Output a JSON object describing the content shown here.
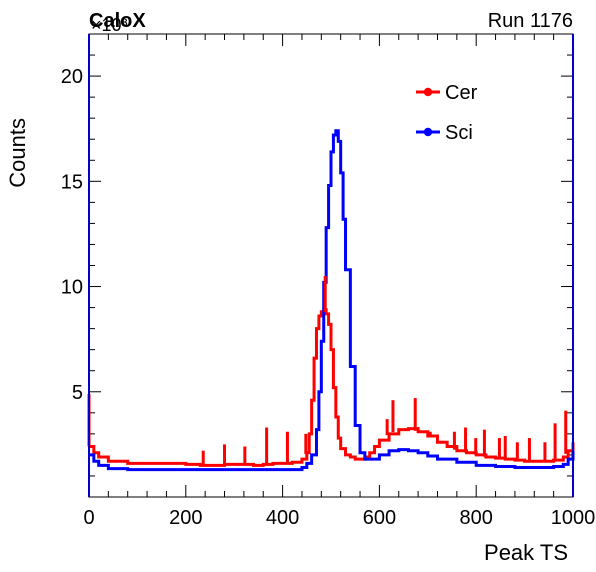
{
  "header": {
    "left_label": "CaloX",
    "right_label": "Run 1176"
  },
  "chart_data": {
    "type": "line",
    "title": "",
    "xlabel": "Peak TS",
    "ylabel": "Counts",
    "xlim": [
      0,
      1000
    ],
    "ylim": [
      0,
      22
    ],
    "y_scale_label": "×10³",
    "y_units_multiplier": 1000,
    "xticks": [
      0,
      200,
      400,
      600,
      800,
      1000
    ],
    "yticks": [
      5,
      10,
      15,
      20
    ],
    "legend_position": "top-right",
    "grid": false,
    "series": [
      {
        "name": "Cer",
        "color": "#ff0000",
        "style": "step-line",
        "x": [
          0,
          10,
          20,
          40,
          80,
          120,
          160,
          200,
          230,
          260,
          280,
          300,
          320,
          340,
          360,
          380,
          400,
          420,
          440,
          450,
          455,
          460,
          465,
          470,
          475,
          480,
          485,
          490,
          495,
          500,
          505,
          510,
          515,
          520,
          530,
          540,
          550,
          560,
          570,
          580,
          590,
          600,
          620,
          640,
          660,
          680,
          700,
          720,
          740,
          760,
          780,
          800,
          820,
          840,
          860,
          880,
          900,
          920,
          940,
          960,
          980,
          990,
          1000
        ],
        "values": [
          2.4,
          2.1,
          1.9,
          1.7,
          1.6,
          1.6,
          1.6,
          1.55,
          1.5,
          1.5,
          1.55,
          1.55,
          1.55,
          1.5,
          1.55,
          1.6,
          1.6,
          1.65,
          1.8,
          2.1,
          3.0,
          4.6,
          6.6,
          8.0,
          8.6,
          8.8,
          8.9,
          8.7,
          8.2,
          7.0,
          5.2,
          3.8,
          2.8,
          2.3,
          2.0,
          1.9,
          1.8,
          1.8,
          1.9,
          2.1,
          2.4,
          2.7,
          3.0,
          3.2,
          3.25,
          3.1,
          2.9,
          2.6,
          2.4,
          2.2,
          2.1,
          2.0,
          1.9,
          1.85,
          1.8,
          1.75,
          1.7,
          1.7,
          1.7,
          1.75,
          1.9,
          2.2,
          2.6
        ]
      },
      {
        "name": "Sci",
        "color": "#0000ff",
        "style": "step-line",
        "x": [
          0,
          10,
          20,
          40,
          80,
          120,
          160,
          200,
          240,
          280,
          320,
          360,
          400,
          420,
          440,
          450,
          460,
          470,
          475,
          480,
          485,
          490,
          495,
          500,
          505,
          510,
          515,
          520,
          525,
          530,
          540,
          550,
          560,
          570,
          580,
          600,
          620,
          640,
          660,
          680,
          700,
          720,
          760,
          800,
          840,
          880,
          920,
          960,
          980,
          990,
          1000
        ],
        "values": [
          2.0,
          1.7,
          1.5,
          1.35,
          1.3,
          1.3,
          1.3,
          1.3,
          1.3,
          1.3,
          1.3,
          1.3,
          1.3,
          1.3,
          1.4,
          1.6,
          2.0,
          3.2,
          5.0,
          7.4,
          10.2,
          12.8,
          14.8,
          16.4,
          17.2,
          17.4,
          16.9,
          15.4,
          13.2,
          10.8,
          6.2,
          3.4,
          2.1,
          1.8,
          1.8,
          2.0,
          2.2,
          2.25,
          2.2,
          2.1,
          1.95,
          1.8,
          1.65,
          1.5,
          1.45,
          1.4,
          1.4,
          1.45,
          1.55,
          1.8,
          2.2
        ]
      }
    ],
    "spikes": {
      "Cer": [
        {
          "x": 0,
          "value": 4.9
        },
        {
          "x": 236,
          "value": 2.2
        },
        {
          "x": 280,
          "value": 2.5
        },
        {
          "x": 322,
          "value": 2.4
        },
        {
          "x": 367,
          "value": 3.3
        },
        {
          "x": 410,
          "value": 3.1
        },
        {
          "x": 448,
          "value": 3.0
        },
        {
          "x": 488,
          "value": 10.5
        },
        {
          "x": 616,
          "value": 3.7
        },
        {
          "x": 628,
          "value": 4.6
        },
        {
          "x": 674,
          "value": 4.7
        },
        {
          "x": 705,
          "value": 3.1
        },
        {
          "x": 755,
          "value": 3.1
        },
        {
          "x": 778,
          "value": 3.3
        },
        {
          "x": 799,
          "value": 2.8
        },
        {
          "x": 817,
          "value": 3.2
        },
        {
          "x": 848,
          "value": 2.8
        },
        {
          "x": 860,
          "value": 2.9
        },
        {
          "x": 885,
          "value": 2.6
        },
        {
          "x": 910,
          "value": 2.8
        },
        {
          "x": 942,
          "value": 2.6
        },
        {
          "x": 963,
          "value": 3.5
        },
        {
          "x": 985,
          "value": 4.1
        }
      ]
    }
  }
}
